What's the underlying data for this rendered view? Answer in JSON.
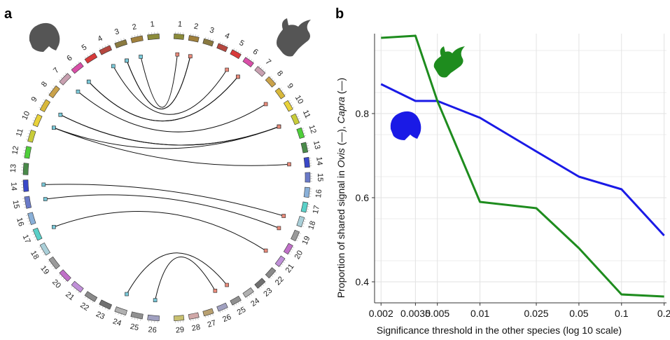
{
  "panels": {
    "a": "a",
    "b": "b"
  },
  "circos": {
    "left_chromosomes": [
      "1",
      "2",
      "3",
      "4",
      "5",
      "6",
      "7",
      "8",
      "9",
      "10",
      "11",
      "12",
      "13",
      "14",
      "15",
      "16",
      "17",
      "18",
      "19",
      "20",
      "21",
      "22",
      "23",
      "24",
      "25",
      "26"
    ],
    "right_chromosomes": [
      "1",
      "2",
      "3",
      "4",
      "5",
      "6",
      "7",
      "8",
      "9",
      "10",
      "11",
      "12",
      "13",
      "14",
      "15",
      "16",
      "17",
      "18",
      "19",
      "20",
      "21",
      "22",
      "23",
      "24",
      "25",
      "26",
      "27",
      "28",
      "29"
    ],
    "colors": [
      "#8b8b3a",
      "#a0803c",
      "#8a7a40",
      "#b5473f",
      "#d83a3a",
      "#d94fa8",
      "#c8a0b0",
      "#caa24a",
      "#d8b83a",
      "#e8d23a",
      "#c8cc3a",
      "#4fcf3a",
      "#4a8a4a",
      "#3a48c8",
      "#6a7ac8",
      "#8ab0d8",
      "#5ad0c8",
      "#aacfd8",
      "#9a9a9a",
      "#c070c8",
      "#c090d8",
      "#8a8a8a",
      "#707070",
      "#b0b0b0",
      "#909090",
      "#a0a0c0",
      "#b8a070",
      "#d0a8a8",
      "#c8c070"
    ],
    "links": [
      {
        "left": "2",
        "right": "1"
      },
      {
        "left": "3",
        "right": "2"
      },
      {
        "left": "3",
        "right": "2"
      },
      {
        "left": "4",
        "right": "5"
      },
      {
        "left": "6",
        "right": "6"
      },
      {
        "left": "6",
        "right": "6"
      },
      {
        "left": "7",
        "right": "9"
      },
      {
        "left": "9",
        "right": "11"
      },
      {
        "left": "9",
        "right": "11"
      },
      {
        "left": "10",
        "right": "14"
      },
      {
        "left": "10",
        "right": "11"
      },
      {
        "left": "14",
        "right": "18"
      },
      {
        "left": "15",
        "right": "19"
      },
      {
        "left": "17",
        "right": "21"
      },
      {
        "left": "24",
        "right": "25"
      },
      {
        "left": "26",
        "right": "26"
      }
    ]
  },
  "chart_data": {
    "type": "line",
    "xlabel": "Significance threshold in the other species (log 10 scale)",
    "ylabel_parts": [
      "Proportion of shared signal in ",
      "Ovis",
      " (—), ",
      "Capra",
      " (—)"
    ],
    "x": [
      0.002,
      0.0035,
      0.005,
      0.01,
      0.025,
      0.05,
      0.1,
      0.2
    ],
    "x_tick_labels": [
      "0.002",
      "0.0035",
      "0.005",
      "0.01",
      "0.025",
      "0.05",
      "0.1",
      "0.2"
    ],
    "x_scale": "log",
    "xlim": [
      0.0018,
      0.22
    ],
    "ylim": [
      0.35,
      0.99
    ],
    "y_ticks": [
      0.4,
      0.6,
      0.8
    ],
    "y_tick_labels": [
      "0.4",
      "0.6",
      "0.8"
    ],
    "grid": true,
    "series": [
      {
        "color": "#1a1ae6",
        "values": [
          0.87,
          0.83,
          0.83,
          0.79,
          0.71,
          0.65,
          0.62,
          0.51
        ]
      },
      {
        "color": "#1e8c1e",
        "values": [
          0.98,
          0.985,
          0.83,
          0.59,
          0.575,
          0.48,
          0.37,
          0.365
        ]
      }
    ]
  }
}
